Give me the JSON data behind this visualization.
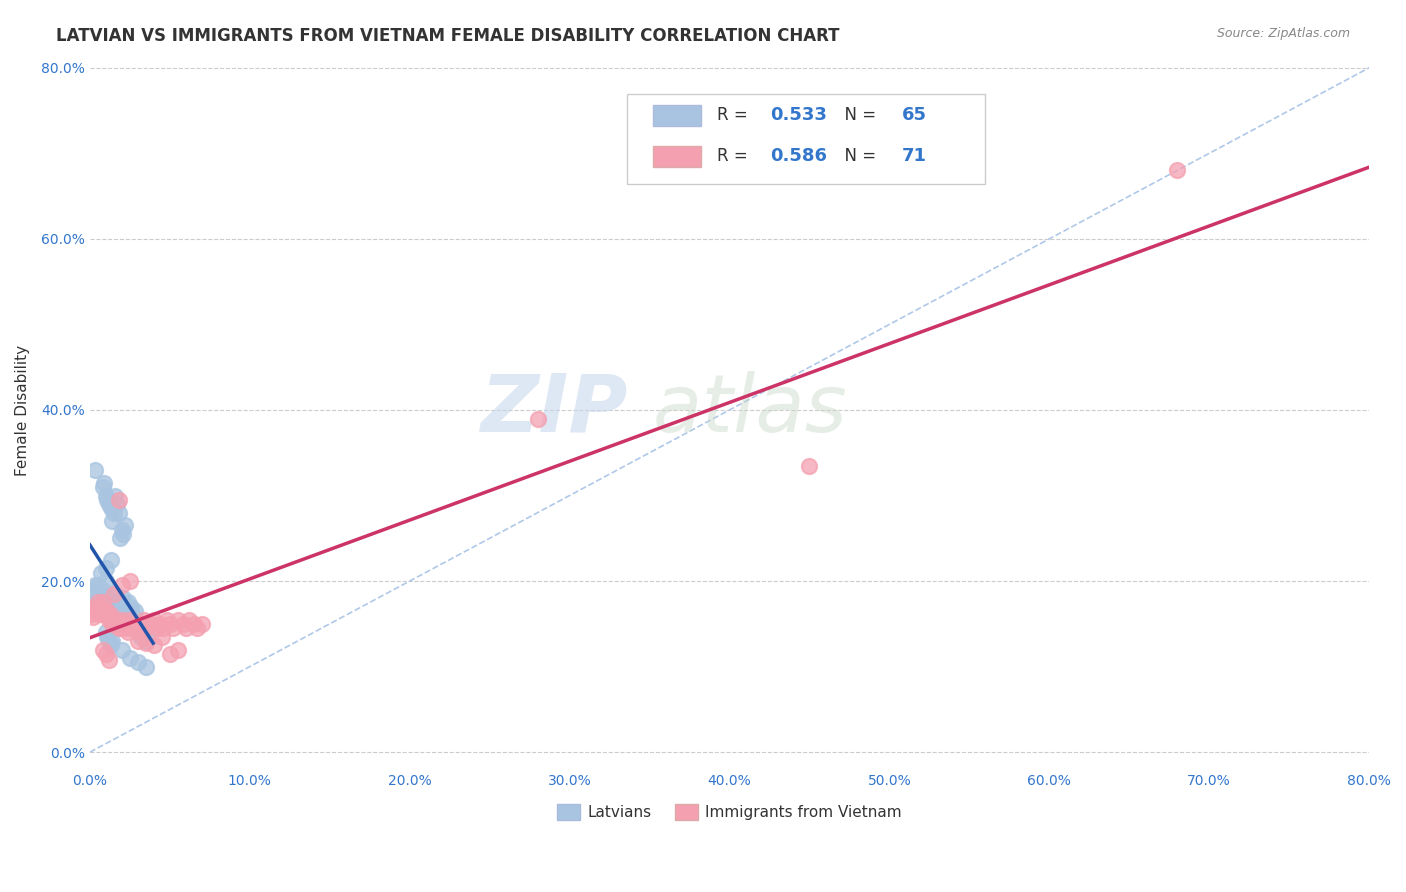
{
  "title": "LATVIAN VS IMMIGRANTS FROM VIETNAM FEMALE DISABILITY CORRELATION CHART",
  "source": "Source: ZipAtlas.com",
  "xlabel_label": "Latvians",
  "ylabel_label": "Female Disability",
  "xlabel2_label": "Immigrants from Vietnam",
  "xmin": 0.0,
  "xmax": 0.8,
  "ymin": -0.02,
  "ymax": 0.82,
  "latvian_R": 0.533,
  "latvian_N": 65,
  "vietnam_R": 0.586,
  "vietnam_N": 71,
  "latvian_color": "#a8c4e0",
  "latvian_line_color": "#2255aa",
  "vietnam_color": "#f4a0b0",
  "vietnam_line_color": "#cc3366",
  "diagonal_color": "#b0c8e8",
  "watermark_zip": "ZIP",
  "watermark_atlas": "atlas",
  "latvian_scatter": [
    [
      0.005,
      0.195
    ],
    [
      0.006,
      0.185
    ],
    [
      0.007,
      0.21
    ],
    [
      0.008,
      0.19
    ],
    [
      0.009,
      0.175
    ],
    [
      0.01,
      0.2
    ],
    [
      0.01,
      0.215
    ],
    [
      0.011,
      0.18
    ],
    [
      0.012,
      0.165
    ],
    [
      0.013,
      0.225
    ],
    [
      0.014,
      0.16
    ],
    [
      0.015,
      0.175
    ],
    [
      0.016,
      0.185
    ],
    [
      0.017,
      0.165
    ],
    [
      0.018,
      0.155
    ],
    [
      0.018,
      0.17
    ],
    [
      0.019,
      0.16
    ],
    [
      0.02,
      0.175
    ],
    [
      0.021,
      0.18
    ],
    [
      0.022,
      0.165
    ],
    [
      0.023,
      0.16
    ],
    [
      0.024,
      0.175
    ],
    [
      0.025,
      0.165
    ],
    [
      0.026,
      0.17
    ],
    [
      0.027,
      0.16
    ],
    [
      0.028,
      0.165
    ],
    [
      0.003,
      0.33
    ],
    [
      0.008,
      0.31
    ],
    [
      0.009,
      0.315
    ],
    [
      0.01,
      0.3
    ],
    [
      0.011,
      0.295
    ],
    [
      0.012,
      0.29
    ],
    [
      0.013,
      0.285
    ],
    [
      0.014,
      0.27
    ],
    [
      0.015,
      0.28
    ],
    [
      0.016,
      0.3
    ],
    [
      0.017,
      0.29
    ],
    [
      0.018,
      0.28
    ],
    [
      0.019,
      0.25
    ],
    [
      0.02,
      0.26
    ],
    [
      0.021,
      0.255
    ],
    [
      0.022,
      0.265
    ],
    [
      0.002,
      0.19
    ],
    [
      0.003,
      0.195
    ],
    [
      0.004,
      0.185
    ],
    [
      0.005,
      0.18
    ],
    [
      0.006,
      0.175
    ],
    [
      0.007,
      0.185
    ],
    [
      0.03,
      0.145
    ],
    [
      0.031,
      0.14
    ],
    [
      0.032,
      0.135
    ],
    [
      0.033,
      0.145
    ],
    [
      0.034,
      0.14
    ],
    [
      0.035,
      0.13
    ],
    [
      0.036,
      0.135
    ],
    [
      0.01,
      0.14
    ],
    [
      0.011,
      0.135
    ],
    [
      0.012,
      0.13
    ],
    [
      0.013,
      0.125
    ],
    [
      0.014,
      0.13
    ],
    [
      0.02,
      0.12
    ],
    [
      0.025,
      0.11
    ],
    [
      0.03,
      0.105
    ],
    [
      0.035,
      0.1
    ]
  ],
  "vietnam_scatter": [
    [
      0.005,
      0.175
    ],
    [
      0.007,
      0.17
    ],
    [
      0.008,
      0.175
    ],
    [
      0.009,
      0.165
    ],
    [
      0.01,
      0.16
    ],
    [
      0.011,
      0.165
    ],
    [
      0.012,
      0.155
    ],
    [
      0.013,
      0.16
    ],
    [
      0.014,
      0.15
    ],
    [
      0.015,
      0.155
    ],
    [
      0.016,
      0.15
    ],
    [
      0.017,
      0.155
    ],
    [
      0.018,
      0.145
    ],
    [
      0.019,
      0.15
    ],
    [
      0.02,
      0.145
    ],
    [
      0.021,
      0.155
    ],
    [
      0.022,
      0.15
    ],
    [
      0.023,
      0.145
    ],
    [
      0.024,
      0.14
    ],
    [
      0.025,
      0.155
    ],
    [
      0.026,
      0.145
    ],
    [
      0.027,
      0.15
    ],
    [
      0.028,
      0.145
    ],
    [
      0.029,
      0.15
    ],
    [
      0.03,
      0.145
    ],
    [
      0.031,
      0.14
    ],
    [
      0.032,
      0.15
    ],
    [
      0.033,
      0.145
    ],
    [
      0.034,
      0.155
    ],
    [
      0.035,
      0.145
    ],
    [
      0.038,
      0.15
    ],
    [
      0.04,
      0.155
    ],
    [
      0.042,
      0.145
    ],
    [
      0.044,
      0.15
    ],
    [
      0.046,
      0.145
    ],
    [
      0.048,
      0.155
    ],
    [
      0.05,
      0.15
    ],
    [
      0.052,
      0.145
    ],
    [
      0.055,
      0.155
    ],
    [
      0.058,
      0.15
    ],
    [
      0.06,
      0.145
    ],
    [
      0.062,
      0.155
    ],
    [
      0.065,
      0.15
    ],
    [
      0.067,
      0.145
    ],
    [
      0.07,
      0.15
    ],
    [
      0.015,
      0.185
    ],
    [
      0.02,
      0.195
    ],
    [
      0.03,
      0.13
    ],
    [
      0.04,
      0.125
    ],
    [
      0.05,
      0.115
    ],
    [
      0.055,
      0.12
    ],
    [
      0.045,
      0.135
    ],
    [
      0.035,
      0.128
    ],
    [
      0.025,
      0.2
    ],
    [
      0.28,
      0.39
    ],
    [
      0.45,
      0.335
    ],
    [
      0.018,
      0.295
    ],
    [
      0.003,
      0.165
    ],
    [
      0.004,
      0.17
    ],
    [
      0.006,
      0.162
    ],
    [
      0.002,
      0.158
    ],
    [
      0.001,
      0.162
    ],
    [
      0.008,
      0.12
    ],
    [
      0.01,
      0.115
    ],
    [
      0.012,
      0.108
    ],
    [
      0.68,
      0.68
    ]
  ]
}
